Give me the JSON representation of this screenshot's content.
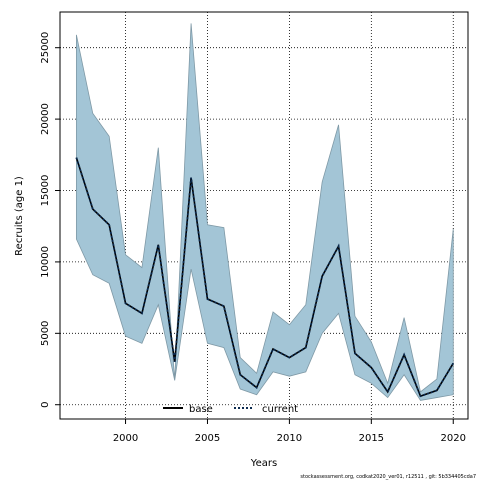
{
  "chart_data": {
    "type": "area",
    "title": "",
    "xlabel": "Years",
    "ylabel": "Recruits (age 1)",
    "xlim": [
      1996.0,
      2020.9
    ],
    "ylim": [
      -1000,
      27500
    ],
    "x_ticks": [
      2000,
      2005,
      2010,
      2015,
      2020
    ],
    "y_ticks": [
      0,
      5000,
      10000,
      15000,
      20000,
      25000
    ],
    "grid": true,
    "legend_position": "bottom-center",
    "colors": {
      "band_fill": "#a3c5d6",
      "band_edge": "#7f99a6",
      "base_line": "#000000",
      "current_line": "#0b2a4f"
    },
    "x": [
      1997,
      1998,
      1999,
      2000,
      2001,
      2002,
      2003,
      2004,
      2005,
      2006,
      2007,
      2008,
      2009,
      2010,
      2011,
      2012,
      2013,
      2014,
      2015,
      2016,
      2017,
      2018,
      2019,
      2020
    ],
    "band": {
      "upper": [
        25900,
        20400,
        18800,
        10500,
        9600,
        18000,
        1700,
        26700,
        12600,
        12400,
        3300,
        2200,
        6500,
        5600,
        7000,
        15600,
        19600,
        6200,
        4400,
        1500,
        6100,
        900,
        1800,
        12300
      ],
      "lower": [
        11600,
        9100,
        8500,
        4800,
        4300,
        7000,
        1700,
        9500,
        4300,
        4000,
        1100,
        700,
        2300,
        2000,
        2300,
        5000,
        6400,
        2100,
        1500,
        500,
        2100,
        300,
        500,
        700
      ]
    },
    "series": [
      {
        "name": "base",
        "values": [
          17300,
          13700,
          12600,
          7100,
          6400,
          11200,
          3000,
          15900,
          7400,
          6900,
          2100,
          1200,
          3900,
          3300,
          4000,
          9000,
          11100,
          3600,
          2600,
          900,
          3500,
          600,
          1000,
          2900
        ]
      },
      {
        "name": "current",
        "values": [
          17300,
          13700,
          12600,
          7100,
          6400,
          11200,
          3000,
          15900,
          7400,
          6900,
          2100,
          1200,
          3900,
          3300,
          4000,
          9000,
          11100,
          3600,
          2600,
          900,
          3500,
          600,
          1000,
          2900
        ]
      }
    ],
    "footer": "stockassessment.org, codkat2020_ver01, r12511 , git: 5b334405cda7"
  }
}
